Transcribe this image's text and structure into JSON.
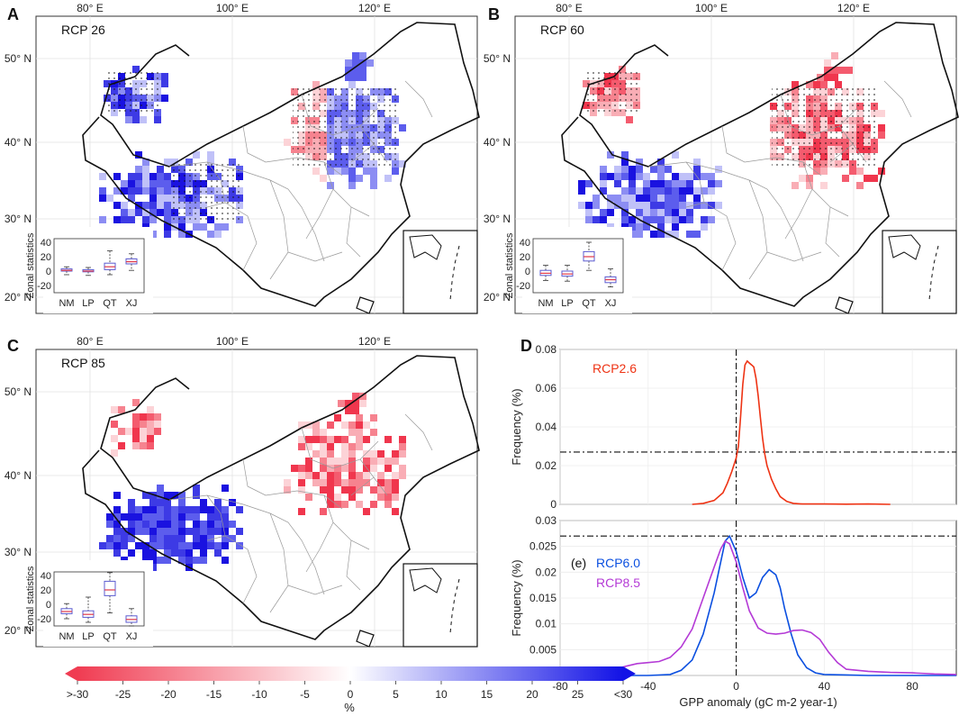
{
  "panels": {
    "A": {
      "letter": "A",
      "scenario": "RCP 26"
    },
    "B": {
      "letter": "B",
      "scenario": "RCP 60"
    },
    "C": {
      "letter": "C",
      "scenario": "RCP 85"
    },
    "D": {
      "letter": "D"
    }
  },
  "map_axes": {
    "lon_ticks": [
      "80° E",
      "100° E",
      "120° E"
    ],
    "lat_ticks": [
      "50° N",
      "40° N",
      "30° N",
      "20° N"
    ]
  },
  "inset": {
    "ylabel": "Zonal statistics",
    "yticks": [
      "40",
      "20",
      "0",
      "-20"
    ],
    "zones": [
      "NM",
      "LP",
      "QT",
      "XJ"
    ]
  },
  "colorbar": {
    "tick_labels": [
      ">-30",
      "-25",
      "-20",
      "-15",
      "-10",
      "-5",
      "0",
      "5",
      "10",
      "15",
      "20",
      "25",
      "<30"
    ],
    "unit": "%",
    "neg_color": "#f03c52",
    "zero_color": "#ffffff",
    "pos_color": "#1212e6"
  },
  "chart_data": [
    {
      "type": "box",
      "title": "Zonal statistics RCP 26",
      "categories": [
        "NM",
        "LP",
        "QT",
        "XJ"
      ],
      "ylim": [
        -30,
        45
      ],
      "boxes": [
        {
          "zone": "NM",
          "whisker_low": -5,
          "q1": 0,
          "median": 1,
          "q3": 3,
          "whisker_high": 6
        },
        {
          "zone": "LP",
          "whisker_low": -6,
          "q1": -1,
          "median": 0,
          "q3": 2,
          "whisker_high": 5
        },
        {
          "zone": "QT",
          "whisker_low": -5,
          "q1": 2,
          "median": 6,
          "q3": 11,
          "whisker_high": 28
        },
        {
          "zone": "XJ",
          "whisker_low": 1,
          "q1": 10,
          "median": 13,
          "q3": 17,
          "whisker_high": 24
        }
      ]
    },
    {
      "type": "box",
      "title": "Zonal statistics RCP 60",
      "categories": [
        "NM",
        "LP",
        "QT",
        "XJ"
      ],
      "ylim": [
        -30,
        45
      ],
      "boxes": [
        {
          "zone": "NM",
          "whisker_low": -13,
          "q1": -6,
          "median": -3,
          "q3": 1,
          "whisker_high": 8
        },
        {
          "zone": "LP",
          "whisker_low": -14,
          "q1": -7,
          "median": -4,
          "q3": 0,
          "whisker_high": 8
        },
        {
          "zone": "QT",
          "whisker_low": 1,
          "q1": 14,
          "median": 20,
          "q3": 27,
          "whisker_high": 40
        },
        {
          "zone": "XJ",
          "whisker_low": -22,
          "q1": -16,
          "median": -12,
          "q3": -8,
          "whisker_high": 3
        }
      ]
    },
    {
      "type": "box",
      "title": "Zonal statistics RCP 85",
      "categories": [
        "NM",
        "LP",
        "QT",
        "XJ"
      ],
      "ylim": [
        -30,
        45
      ],
      "boxes": [
        {
          "zone": "NM",
          "whisker_low": -20,
          "q1": -13,
          "median": -10,
          "q3": -6,
          "whisker_high": 1
        },
        {
          "zone": "LP",
          "whisker_low": -25,
          "q1": -18,
          "median": -14,
          "q3": -9,
          "whisker_high": 10
        },
        {
          "zone": "QT",
          "whisker_low": -12,
          "q1": 12,
          "median": 20,
          "q3": 32,
          "whisker_high": 44
        },
        {
          "zone": "XJ",
          "whisker_low": -30,
          "q1": -25,
          "median": -21,
          "q3": -16,
          "whisker_high": -6
        }
      ]
    },
    {
      "type": "line",
      "title": "",
      "ylabel": "Frequency (%)",
      "xlim": [
        -80,
        100
      ],
      "ylim": [
        0,
        0.08
      ],
      "yticks": [
        0,
        0.02,
        0.04,
        0.06,
        0.08
      ],
      "ytick_labels": [
        "0",
        "0.02",
        "0.04",
        "0.06",
        "0.08"
      ],
      "hline": 0.027,
      "vline": 0,
      "series": [
        {
          "name": "RCP2.6",
          "color": "#ee3314",
          "x": [
            -20,
            -15,
            -10,
            -6,
            -4,
            -2,
            0,
            1,
            2,
            3,
            4,
            5,
            6,
            7,
            8,
            9,
            10,
            11,
            12,
            13,
            14,
            16,
            18,
            20,
            23,
            26,
            30,
            40,
            50,
            60,
            70
          ],
          "y": [
            0,
            0.0005,
            0.002,
            0.006,
            0.011,
            0.017,
            0.024,
            0.03,
            0.045,
            0.062,
            0.072,
            0.074,
            0.073,
            0.072,
            0.071,
            0.065,
            0.056,
            0.045,
            0.034,
            0.026,
            0.02,
            0.013,
            0.008,
            0.004,
            0.0015,
            0.0005,
            0.0002,
            0.0002,
            0.0001,
            0.0002,
            0
          ]
        }
      ]
    },
    {
      "type": "line",
      "title": "",
      "xlabel": "GPP anomaly (gC m-2 year-1)",
      "ylabel": "Frequency (%)",
      "annotation": "(e)",
      "xlim": [
        -80,
        100
      ],
      "ylim": [
        0,
        0.03
      ],
      "xticks": [
        -80,
        -40,
        0,
        40,
        80
      ],
      "xtick_labels": [
        "-80",
        "-40",
        "0",
        "40",
        "80"
      ],
      "yticks": [
        0,
        0.005,
        0.01,
        0.015,
        0.02,
        0.025,
        0.03
      ],
      "ytick_labels": [
        "0",
        "0.005",
        "0.01",
        "0.015",
        "0.02",
        "0.025",
        "0.03"
      ],
      "hline": 0.027,
      "vline": 0,
      "series": [
        {
          "name": "RCP6.0",
          "color": "#0b4fe0",
          "x": [
            -80,
            -40,
            -30,
            -25,
            -20,
            -15,
            -10,
            -7,
            -5,
            -3,
            0,
            3,
            6,
            9,
            12,
            15,
            18,
            20,
            22,
            25,
            28,
            32,
            36,
            40,
            50,
            60,
            80,
            100
          ],
          "y": [
            0,
            0,
            0.0002,
            0.001,
            0.003,
            0.008,
            0.016,
            0.022,
            0.026,
            0.027,
            0.024,
            0.019,
            0.015,
            0.016,
            0.019,
            0.0205,
            0.0195,
            0.017,
            0.013,
            0.008,
            0.004,
            0.0015,
            0.0005,
            0.0002,
            0.0001,
            0,
            0,
            0
          ]
        },
        {
          "name": "RCP8.5",
          "color": "#b43ad6",
          "x": [
            -80,
            -70,
            -60,
            -55,
            -50,
            -45,
            -40,
            -35,
            -30,
            -25,
            -20,
            -15,
            -10,
            -7,
            -5,
            -3,
            0,
            3,
            6,
            10,
            14,
            18,
            22,
            26,
            30,
            34,
            38,
            42,
            46,
            50,
            60,
            70,
            80,
            90,
            100
          ],
          "y": [
            0,
            0.0003,
            0.0007,
            0.0012,
            0.0018,
            0.0023,
            0.0025,
            0.0027,
            0.0035,
            0.0055,
            0.009,
            0.015,
            0.021,
            0.0245,
            0.026,
            0.0255,
            0.022,
            0.017,
            0.0125,
            0.0092,
            0.0082,
            0.008,
            0.0082,
            0.0087,
            0.0088,
            0.0083,
            0.007,
            0.0045,
            0.0025,
            0.0012,
            0.0008,
            0.0006,
            0.0005,
            0.0003,
            0.0002
          ]
        }
      ]
    }
  ]
}
